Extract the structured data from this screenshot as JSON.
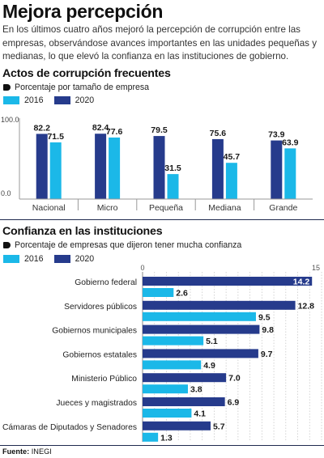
{
  "header": {
    "title": "Mejora percepción",
    "intro": "En los últimos cuatro años mejoró la percepción de corrupción entre las empresas, observándose avances importantes en las unidades pequeñas y medianas, lo que elevó la confianza en las instituciones de gobierno."
  },
  "colors": {
    "y2016": "#1bb8e8",
    "y2020": "#263b8c",
    "divider": "#1f2a4f"
  },
  "chart_data": [
    {
      "type": "bar",
      "title": "Actos de corrupción frecuentes",
      "subtitle": "Porcentaje por tamaño de empresa",
      "categories": [
        "Nacional",
        "Micro",
        "Pequeña",
        "Mediana",
        "Grande"
      ],
      "series": [
        {
          "name": "2016",
          "values": [
            71.5,
            77.6,
            31.5,
            45.7,
            63.9
          ]
        },
        {
          "name": "2020",
          "values": [
            82.2,
            82.4,
            79.5,
            75.6,
            73.9
          ]
        }
      ],
      "ylim": [
        0,
        100
      ],
      "ytick_labels": [
        "0.0",
        "100.0"
      ],
      "legend": "top-left",
      "grid": false
    },
    {
      "type": "bar",
      "orientation": "horizontal",
      "title": "Confianza en las instituciones",
      "subtitle": "Porcentaje de empresas que dijeron tener mucha confianza",
      "categories": [
        "Gobierno federal",
        "Servidores públicos",
        "Gobiernos municipales",
        "Gobiernos estatales",
        "Ministerio Público",
        "Jueces y magistrados",
        "Cámaras de Diputados y Senadores"
      ],
      "series": [
        {
          "name": "2020",
          "values": [
            14.2,
            12.8,
            9.8,
            9.7,
            7.0,
            6.9,
            5.7
          ]
        },
        {
          "name": "2016",
          "values": [
            2.6,
            9.5,
            5.1,
            4.9,
            3.8,
            4.1,
            1.3
          ]
        }
      ],
      "xlim": [
        0,
        15
      ],
      "xtick_labels": [
        "0",
        "15"
      ],
      "legend": "top-left",
      "grid": true
    }
  ],
  "legend_labels": {
    "y2016": "2016",
    "y2020": "2020"
  },
  "footer": {
    "source_label": "Fuente:",
    "source_value": "INEGI"
  }
}
